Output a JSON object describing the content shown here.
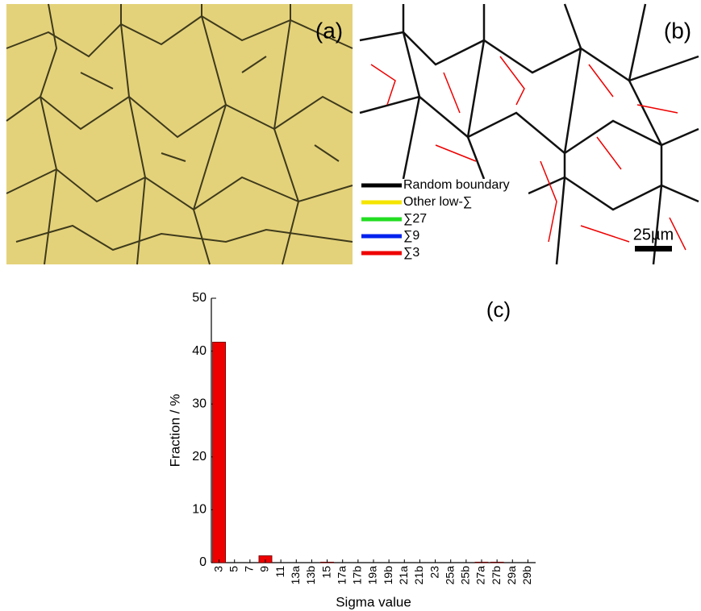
{
  "panels": {
    "a": {
      "label": "(a)"
    },
    "b": {
      "label": "(b)",
      "scale_bar": "25µm",
      "legend": [
        {
          "label": "Random boundary",
          "color": "#000000"
        },
        {
          "label": "Other low-∑",
          "color": "#f5e400"
        },
        {
          "label": "∑27",
          "color": "#22dd22"
        },
        {
          "label": "∑9",
          "color": "#0022ee"
        },
        {
          "label": "∑3",
          "color": "#ee0000"
        }
      ]
    }
  },
  "chart_data": {
    "type": "bar",
    "annotation": "(c)",
    "x_label": "Sigma value",
    "y_label": "Fraction / %",
    "categories": [
      "3",
      "5",
      "7",
      "9",
      "11",
      "13a",
      "13b",
      "15",
      "17a",
      "17b",
      "19a",
      "19b",
      "21a",
      "21b",
      "23",
      "25a",
      "25b",
      "27a",
      "27b",
      "29a",
      "29b"
    ],
    "values": [
      41.7,
      0,
      0,
      1.3,
      0,
      0,
      0,
      0.1,
      0,
      0,
      0,
      0,
      0,
      0,
      0,
      0,
      0,
      0.1,
      0.1,
      0,
      0
    ],
    "color": "#ee0000",
    "ylim": [
      0,
      50
    ],
    "yticks": [
      0,
      10,
      20,
      30,
      40,
      50
    ]
  }
}
